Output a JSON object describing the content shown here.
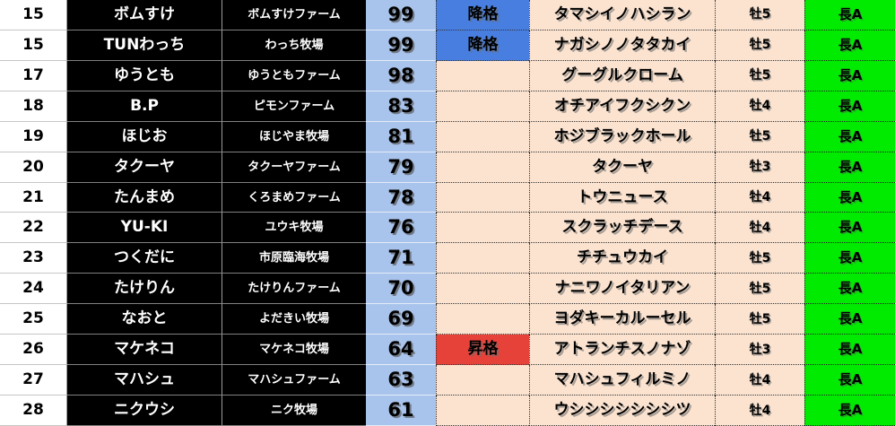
{
  "colors": {
    "score_bg": "#a9c4ec",
    "score_row_divider": "#e3ebf7",
    "status_neutral_bg": "#fbe3d0",
    "status_demote_bg": "#477ee0",
    "status_promote_bg": "#e7423a",
    "horse_bg": "#fbe3d0",
    "sex_bg": "#fbe3d0",
    "class_bg": "#00eb00",
    "name_bg": "#000000",
    "name_text": "#ffffff"
  },
  "status_legend": {
    "demote": "降格",
    "promote": "昇格"
  },
  "table": {
    "column_keys": [
      "rank",
      "owner",
      "farm",
      "score",
      "status",
      "horse",
      "sex",
      "class"
    ],
    "rows": [
      {
        "rank": "15",
        "owner": "ボムすけ",
        "farm": "ボムすけファーム",
        "score": "99",
        "status": "降格",
        "horse": "タマシイノハシラン",
        "sex": "牡5",
        "class": "長A"
      },
      {
        "rank": "15",
        "owner": "TUNわっち",
        "farm": "わっち牧場",
        "score": "99",
        "status": "降格",
        "horse": "ナガシノノタタカイ",
        "sex": "牡5",
        "class": "長A"
      },
      {
        "rank": "17",
        "owner": "ゆうとも",
        "farm": "ゆうともファーム",
        "score": "98",
        "status": "",
        "horse": "グーグルクローム",
        "sex": "牡5",
        "class": "長A"
      },
      {
        "rank": "18",
        "owner": "B.P",
        "farm": "ピモンファーム",
        "score": "83",
        "status": "",
        "horse": "オチアイフクシクン",
        "sex": "牡4",
        "class": "長A"
      },
      {
        "rank": "19",
        "owner": "ほじお",
        "farm": "ほじやま牧場",
        "score": "81",
        "status": "",
        "horse": "ホジブラックホール",
        "sex": "牡5",
        "class": "長A"
      },
      {
        "rank": "20",
        "owner": "タクーヤ",
        "farm": "タクーヤファーム",
        "score": "79",
        "status": "",
        "horse": "タクーヤ",
        "sex": "牡3",
        "class": "長A"
      },
      {
        "rank": "21",
        "owner": "たんまめ",
        "farm": "くろまめファーム",
        "score": "78",
        "status": "",
        "horse": "トウニュース",
        "sex": "牡4",
        "class": "長A"
      },
      {
        "rank": "22",
        "owner": "YU-KI",
        "farm": "ユウキ牧場",
        "score": "76",
        "status": "",
        "horse": "スクラッチデース",
        "sex": "牡4",
        "class": "長A"
      },
      {
        "rank": "23",
        "owner": "つくだに",
        "farm": "市原臨海牧場",
        "score": "71",
        "status": "",
        "horse": "チチュウカイ",
        "sex": "牡5",
        "class": "長A"
      },
      {
        "rank": "24",
        "owner": "たけりん",
        "farm": "たけりんファーム",
        "score": "70",
        "status": "",
        "horse": "ナニワノイタリアン",
        "sex": "牡5",
        "class": "長A"
      },
      {
        "rank": "25",
        "owner": "なおと",
        "farm": "よだきい牧場",
        "score": "69",
        "status": "",
        "horse": "ヨダキーカルーセル",
        "sex": "牡5",
        "class": "長A"
      },
      {
        "rank": "26",
        "owner": "マケネコ",
        "farm": "マケネコ牧場",
        "score": "64",
        "status": "昇格",
        "horse": "アトランチスノナゾ",
        "sex": "牡3",
        "class": "長A"
      },
      {
        "rank": "27",
        "owner": "マハシュ",
        "farm": "マハシュファーム",
        "score": "63",
        "status": "",
        "horse": "マハシュフィルミノ",
        "sex": "牡4",
        "class": "長A"
      },
      {
        "rank": "28",
        "owner": "ニクウシ",
        "farm": "ニク牧場",
        "score": "61",
        "status": "",
        "horse": "ウシシシシシシシツ",
        "sex": "牡4",
        "class": "長A"
      }
    ]
  }
}
